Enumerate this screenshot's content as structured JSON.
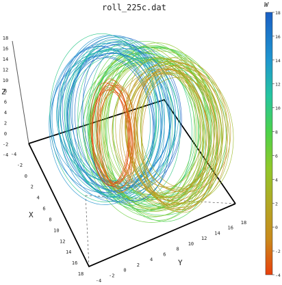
{
  "chart_data": {
    "type": "3d-line",
    "title": "roll_225c.dat",
    "axes": {
      "x": {
        "label": "X",
        "range": [
          -4,
          18
        ],
        "ticks": [
          -4,
          -2,
          0,
          2,
          4,
          6,
          8,
          10,
          12,
          14,
          16,
          18
        ]
      },
      "y": {
        "label": "Y",
        "range": [
          -4,
          18
        ],
        "ticks": [
          -4,
          -2,
          0,
          2,
          4,
          6,
          8,
          10,
          12,
          14,
          16,
          18
        ]
      },
      "z": {
        "label": "Z",
        "range": [
          -4,
          18
        ],
        "ticks": [
          -4,
          -2,
          0,
          2,
          4,
          6,
          8,
          10,
          12,
          14,
          16,
          18
        ]
      }
    },
    "colorbar": {
      "label": "W",
      "range": [
        -4,
        18
      ],
      "ticks": [
        -4,
        -2,
        0,
        2,
        4,
        6,
        8,
        10,
        12,
        14,
        16,
        18
      ],
      "colormap": [
        {
          "w": -4,
          "color": "#e8400c"
        },
        {
          "w": -1,
          "color": "#c98a1c"
        },
        {
          "w": 2,
          "color": "#b2a825"
        },
        {
          "w": 5,
          "color": "#8fc82a"
        },
        {
          "w": 8,
          "color": "#4cd24a"
        },
        {
          "w": 11,
          "color": "#25c5a0"
        },
        {
          "w": 14,
          "color": "#1f96cf"
        },
        {
          "w": 18,
          "color": "#1a5fc4"
        }
      ]
    },
    "surface": {
      "description_type": "swiss-roll",
      "ring_bands": [
        {
          "w_range": [
            -4,
            -1
          ],
          "turns": 14
        },
        {
          "w_range": [
            -1,
            4
          ],
          "turns": 26
        },
        {
          "w_range": [
            4,
            10
          ],
          "turns": 30
        },
        {
          "w_range": [
            10,
            18
          ],
          "turns": 30
        }
      ]
    }
  }
}
